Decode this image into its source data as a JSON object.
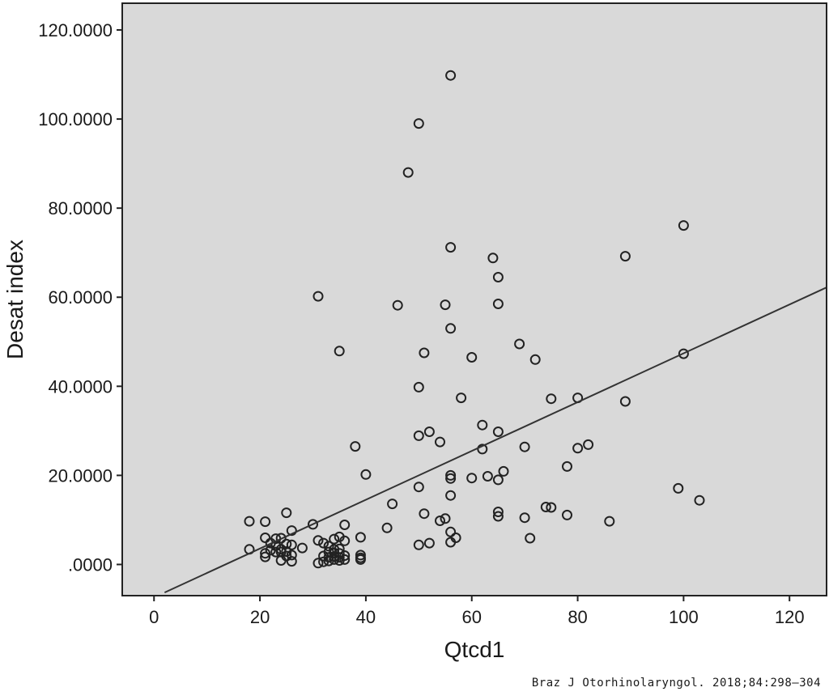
{
  "chart_data": {
    "type": "scatter",
    "xlabel": "Qtcd1",
    "ylabel": "Desat index",
    "xlim": [
      -6,
      127
    ],
    "ylim": [
      -7,
      126
    ],
    "x_ticks": [
      0,
      20,
      40,
      60,
      80,
      100,
      120
    ],
    "x_tick_labels": [
      "0",
      "20",
      "40",
      "60",
      "80",
      "100",
      "120"
    ],
    "y_ticks": [
      0,
      20,
      40,
      60,
      80,
      100,
      120
    ],
    "y_tick_labels": [
      ".0000",
      "20.0000",
      "40.0000",
      "60.0000",
      "80.0000",
      "100.0000",
      "120.0000"
    ],
    "grid": false,
    "legend": "none",
    "colors": {
      "background": "#d9d9d9",
      "marker": "#222222",
      "line": "#333333",
      "frame": "#222222"
    },
    "fit_line": {
      "x_start": 2,
      "y_start": -6.3,
      "x_end": 127,
      "y_end": 62.2
    },
    "series": [
      {
        "x": [
          18,
          18,
          21,
          21,
          21,
          21,
          22,
          22,
          23,
          23,
          23,
          24,
          24,
          24,
          24,
          25,
          25,
          25,
          25,
          26,
          26,
          26,
          26,
          28,
          30,
          31,
          31,
          31,
          32,
          32,
          32,
          33,
          33,
          33,
          33,
          34,
          34,
          34,
          34,
          34,
          35,
          35,
          35,
          35,
          35,
          35,
          36,
          36,
          36,
          36,
          38,
          39,
          39,
          39,
          39,
          40,
          44,
          45,
          46,
          48,
          50,
          50,
          50,
          50,
          50,
          51,
          51,
          52,
          52,
          54,
          54,
          55,
          55,
          56,
          56,
          56,
          56,
          56,
          56,
          56,
          56,
          57,
          58,
          60,
          60,
          62,
          62,
          63,
          64,
          65,
          65,
          65,
          65,
          65,
          65,
          66,
          69,
          70,
          70,
          71,
          72,
          74,
          75,
          75,
          78,
          78,
          80,
          80,
          82,
          86,
          89,
          89,
          99,
          100,
          100,
          103
        ],
        "y": [
          9.7,
          3.4,
          9.6,
          6.0,
          2.5,
          1.7,
          4.8,
          3.2,
          5.8,
          4.2,
          2.8,
          5.9,
          3.4,
          2.8,
          0.9,
          11.6,
          4.6,
          2.9,
          1.9,
          7.6,
          4.4,
          2.1,
          0.7,
          3.7,
          9.0,
          60.2,
          5.4,
          0.3,
          4.8,
          1.9,
          0.6,
          4.1,
          2.8,
          1.6,
          0.8,
          5.7,
          3.4,
          2.6,
          1.8,
          1.1,
          47.9,
          6.2,
          3.5,
          2.5,
          1.6,
          0.9,
          8.9,
          5.3,
          2.0,
          1.1,
          26.5,
          6.1,
          2.1,
          1.5,
          1.1,
          20.2,
          8.2,
          13.6,
          58.2,
          88.0,
          99.0,
          39.8,
          28.9,
          17.4,
          4.4,
          47.5,
          11.4,
          29.8,
          4.8,
          27.5,
          9.8,
          58.3,
          10.3,
          109.8,
          71.2,
          53.0,
          20.0,
          19.3,
          15.5,
          7.3,
          5.0,
          6.0,
          37.4,
          46.5,
          19.4,
          31.3,
          25.9,
          19.8,
          68.8,
          64.5,
          58.5,
          29.8,
          19.0,
          11.8,
          10.8,
          20.9,
          49.5,
          26.4,
          10.5,
          5.9,
          46.0,
          12.9,
          37.2,
          12.8,
          22.0,
          11.1,
          37.4,
          26.1,
          26.9,
          9.7,
          69.2,
          36.6,
          17.1,
          76.1,
          47.3,
          14.4
        ]
      }
    ]
  },
  "footer": {
    "source": "Braz J Otorhinolaryngol. 2018;84:298–304"
  }
}
